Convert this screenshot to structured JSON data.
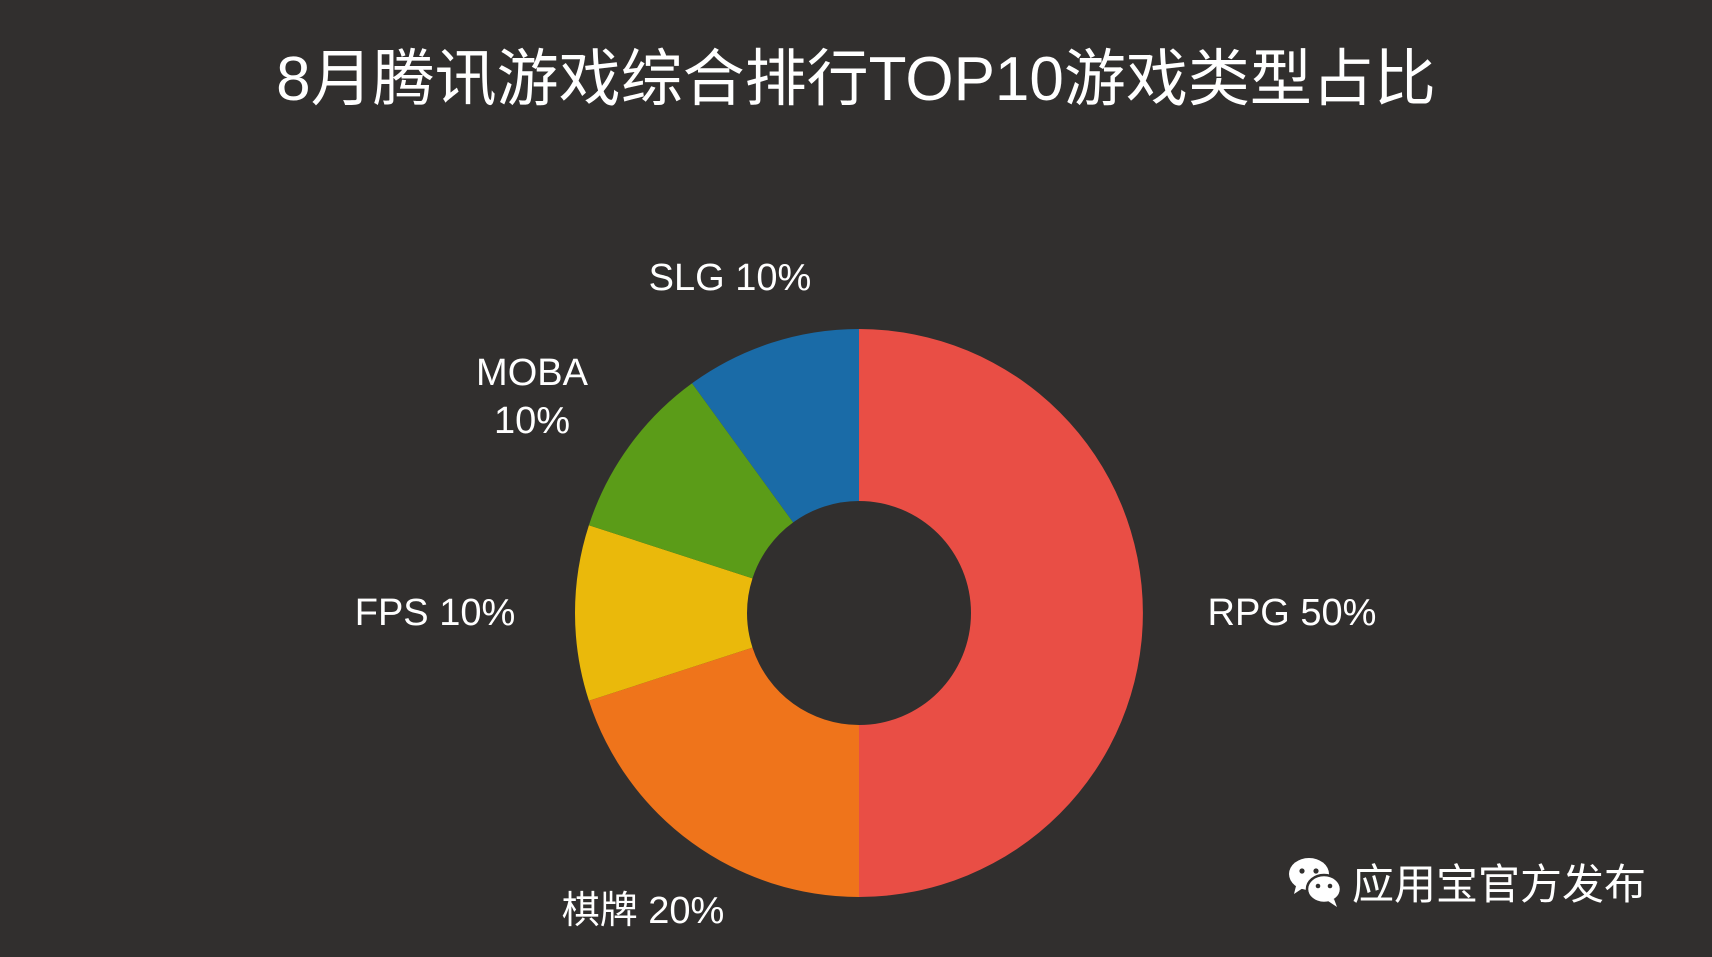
{
  "title": "8月腾讯游戏综合排行TOP10游戏类型占比",
  "watermark": {
    "icon": "wechat-icon",
    "text": "应用宝官方发布"
  },
  "chart_data": {
    "type": "pie",
    "donut": true,
    "title": "8月腾讯游戏综合排行TOP10游戏类型占比",
    "legend": "none",
    "slices": [
      {
        "name": "RPG",
        "value": 50,
        "label": "RPG 50%",
        "color": "#e94e45"
      },
      {
        "name": "棋牌",
        "value": 20,
        "label": "棋牌 20%",
        "color": "#ef741b"
      },
      {
        "name": "FPS",
        "value": 10,
        "label": "FPS 10%",
        "color": "#eab90b"
      },
      {
        "name": "MOBA",
        "value": 10,
        "label": "MOBA 10%",
        "label_lines": [
          "MOBA",
          "10%"
        ],
        "color": "#5b9c18"
      },
      {
        "name": "SLG",
        "value": 10,
        "label": "SLG 10%",
        "color": "#1a6ba7"
      }
    ]
  }
}
